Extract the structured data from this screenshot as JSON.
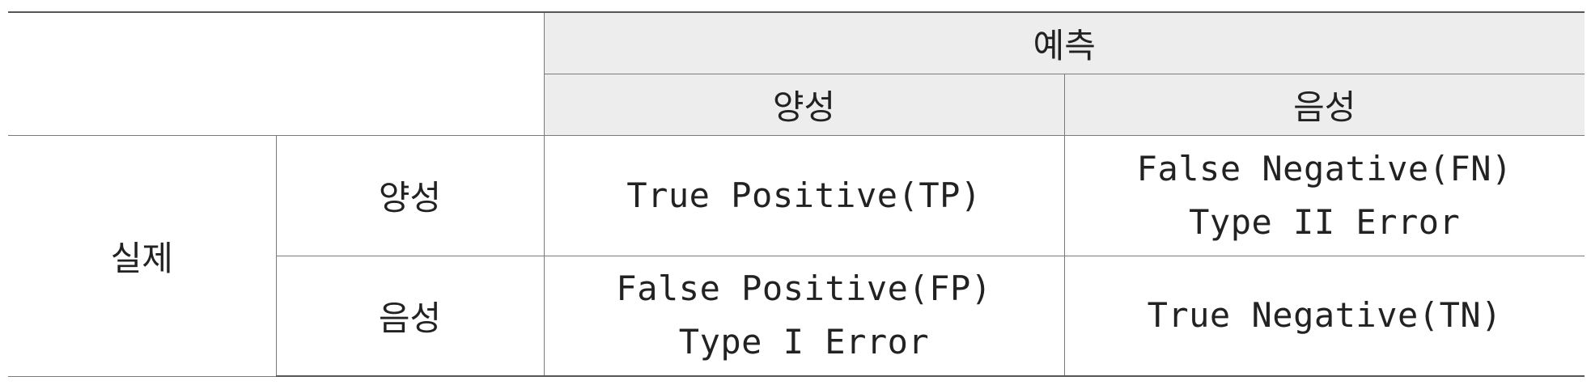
{
  "table": {
    "header": {
      "prediction": "예측",
      "pred_positive": "양성",
      "pred_negative": "음성"
    },
    "actual_label": "실제",
    "rows": [
      {
        "label": "양성",
        "cells": [
          {
            "lines": [
              "True Positive(TP)"
            ]
          },
          {
            "lines": [
              "False Negative(FN)",
              "Type II Error"
            ]
          }
        ]
      },
      {
        "label": "음성",
        "cells": [
          {
            "lines": [
              "False Positive(FP)",
              "Type I Error"
            ]
          },
          {
            "lines": [
              "True Negative(TN)"
            ]
          }
        ]
      }
    ]
  }
}
